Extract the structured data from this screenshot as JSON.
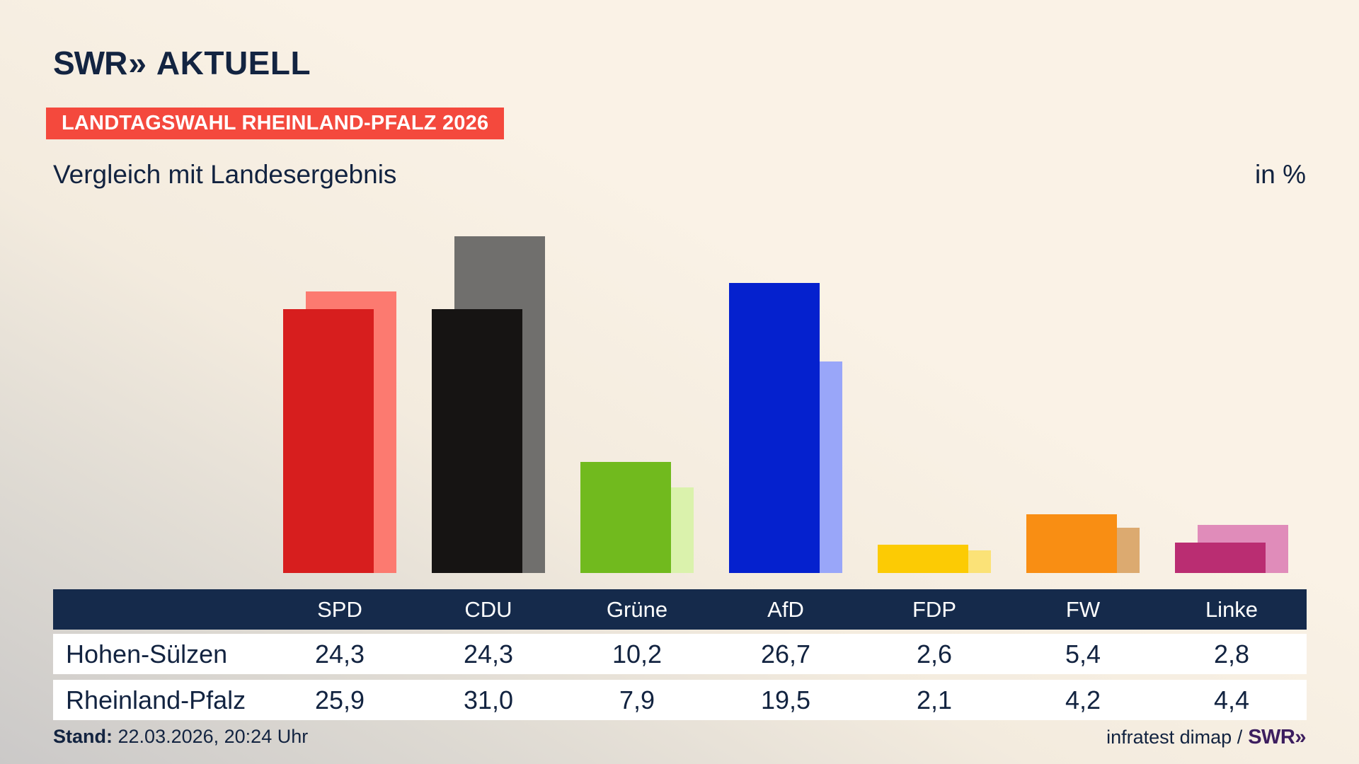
{
  "brand": {
    "swr": "SWR",
    "chevrons": "»",
    "aktuell": "AKTUELL"
  },
  "header": {
    "badge": "LANDTAGSWAHL RHEINLAND-PFALZ 2026",
    "title": "Vergleich mit Landesergebnis",
    "unit": "in %"
  },
  "chart_data": {
    "type": "bar",
    "title": "Vergleich mit Landesergebnis",
    "unit": "%",
    "categories": [
      "SPD",
      "CDU",
      "Grüne",
      "AfD",
      "FDP",
      "FW",
      "Linke"
    ],
    "series": [
      {
        "name": "Hohen-Sülzen",
        "values": [
          24.3,
          24.3,
          10.2,
          26.7,
          2.6,
          5.4,
          2.8
        ]
      },
      {
        "name": "Rheinland-Pfalz",
        "values": [
          25.9,
          31.0,
          7.9,
          19.5,
          2.1,
          4.2,
          4.4
        ]
      }
    ],
    "front_colors": [
      "#d71e1e",
      "#161413",
      "#71ba1e",
      "#0521ce",
      "#fccb04",
      "#f98e13",
      "#ba2d72"
    ],
    "back_colors": [
      "#fc7a70",
      "#706f6d",
      "#daf2ac",
      "#99a6f9",
      "#fbe277",
      "#dcaa70",
      "#e08cba"
    ],
    "ylim": [
      0,
      33
    ],
    "grid": false,
    "legend": "table-rows-act-as-legend",
    "note": "front bar = Hohen-Sülzen, lighter offset back bar = Rheinland-Pfalz"
  },
  "table": {
    "columns": [
      "SPD",
      "CDU",
      "Grüne",
      "AfD",
      "FDP",
      "FW",
      "Linke"
    ],
    "rows": [
      {
        "label": "Hohen-Sülzen",
        "values": [
          "24,3",
          "24,3",
          "10,2",
          "26,7",
          "2,6",
          "5,4",
          "2,8"
        ]
      },
      {
        "label": "Rheinland-Pfalz",
        "values": [
          "25,9",
          "31,0",
          "7,9",
          "19,5",
          "2,1",
          "4,2",
          "4,4"
        ]
      }
    ]
  },
  "footer": {
    "stand_label": "Stand:",
    "stand_value": "22.03.2026, 20:24 Uhr",
    "credit": "infratest dimap /",
    "credit_logo": "SWR»"
  },
  "colors": {
    "background_top": "#faf2e6",
    "background_bottom_left": "#cbc9c8",
    "badge_red": "#f4493d",
    "navy_text": "#122340",
    "table_header_bg": "#152a4b",
    "credit_purple": "#3d1e5f"
  }
}
